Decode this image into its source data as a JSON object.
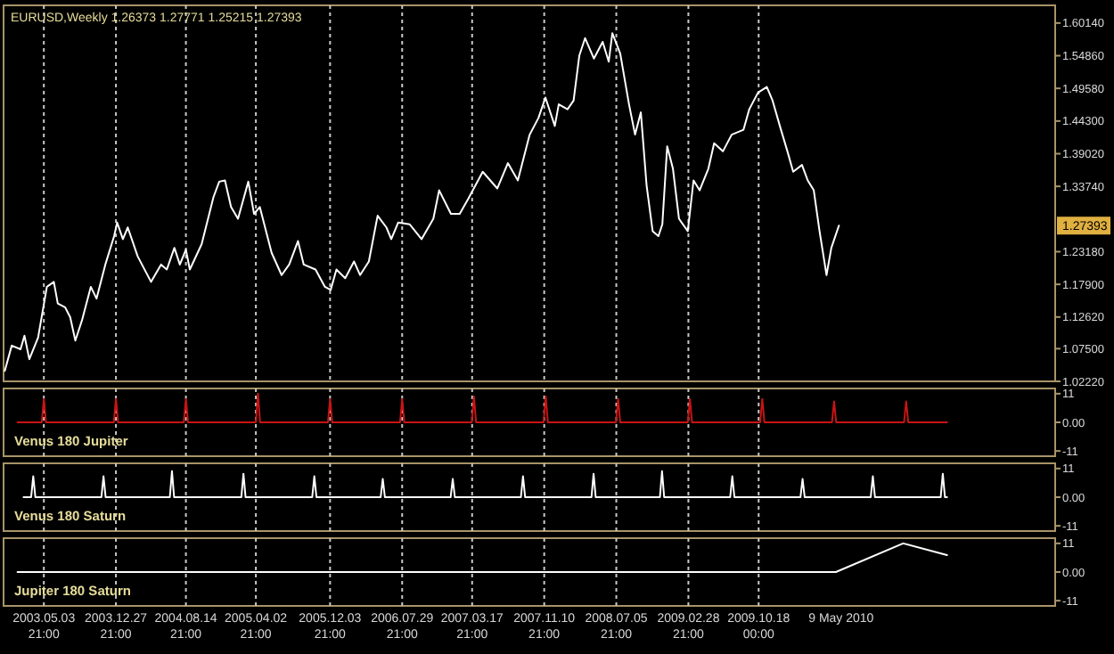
{
  "chart_data": [
    {
      "type": "line",
      "title": "EURUSD,Weekly  1.26373 1.27771 1.25215 1.27393",
      "grid": "x",
      "tick_labels": "y",
      "xlim": [
        "2002-12-21",
        "2012-06-23"
      ],
      "xticks": [
        {
          "value": "2003-05-03",
          "label": null
        },
        {
          "value": "2003-12-27",
          "label": null
        },
        {
          "value": "2004-08-14",
          "label": null
        },
        {
          "value": "2005-04-02",
          "label": null
        },
        {
          "value": "2005-12-03",
          "label": null
        },
        {
          "value": "2006-07-29",
          "label": null
        },
        {
          "value": "2007-03-17",
          "label": null
        },
        {
          "value": "2007-11-10",
          "label": null
        },
        {
          "value": "2008-07-05",
          "label": null
        },
        {
          "value": "2009-02-28",
          "label": null
        },
        {
          "value": "2009-10-18",
          "label": null
        }
      ],
      "ylim": [
        1.0222,
        1.63
      ],
      "yticks": [
        {
          "value": 1.0222,
          "label": "1.02220"
        },
        {
          "value": 1.075,
          "label": "1.07500"
        },
        {
          "value": 1.1262,
          "label": "1.12620"
        },
        {
          "value": 1.179,
          "label": "1.17900"
        },
        {
          "value": 1.2318,
          "label": "1.23180"
        },
        {
          "value": 1.3374,
          "label": "1.33740"
        },
        {
          "value": 1.3902,
          "label": "1.39020"
        },
        {
          "value": 1.443,
          "label": "1.44300"
        },
        {
          "value": 1.4958,
          "label": "1.49580"
        },
        {
          "value": 1.5486,
          "label": "1.54860"
        },
        {
          "value": 1.6014,
          "label": "1.60140"
        }
      ],
      "annotations": [
        {
          "text": "1.27393",
          "y": 1.27393
        }
      ],
      "x": [
        "2002-12-25",
        "2003-01-17",
        "2003-02-15",
        "2003-02-28",
        "2003-03-16",
        "2003-04-14",
        "2003-05-13",
        "2003-06-05",
        "2003-06-18",
        "2003-07-12",
        "2003-07-29",
        "2003-08-15",
        "2003-09-06",
        "2003-10-05",
        "2003-10-24",
        "2003-11-22",
        "2003-12-21",
        "2003-12-31",
        "2004-01-19",
        "2004-02-04",
        "2004-03-08",
        "2004-04-21",
        "2004-05-24",
        "2004-06-12",
        "2004-07-07",
        "2004-07-25",
        "2004-08-14",
        "2004-08-27",
        "2004-10-05",
        "2004-11-13",
        "2004-12-02",
        "2004-12-21",
        "2005-01-10",
        "2005-02-02",
        "2005-03-08",
        "2005-03-27",
        "2005-04-15",
        "2005-05-24",
        "2005-06-26",
        "2005-07-21",
        "2005-08-19",
        "2005-09-07",
        "2005-10-16",
        "2005-11-16",
        "2005-12-05",
        "2005-12-24",
        "2006-01-22",
        "2006-02-20",
        "2006-03-12",
        "2006-04-10",
        "2006-05-09",
        "2006-06-07",
        "2006-06-23",
        "2006-07-16",
        "2006-08-23",
        "2006-10-01",
        "2006-11-09",
        "2006-11-28",
        "2007-01-06",
        "2007-02-04",
        "2007-03-04",
        "2007-04-21",
        "2007-06-08",
        "2007-07-13",
        "2007-08-15",
        "2007-09-23",
        "2007-10-22",
        "2007-11-14",
        "2007-12-15",
        "2007-12-28",
        "2008-01-26",
        "2008-02-15",
        "2008-03-05",
        "2008-03-24",
        "2008-04-22",
        "2008-05-21",
        "2008-06-10",
        "2008-06-22",
        "2008-07-18",
        "2008-08-16",
        "2008-09-05",
        "2008-09-24",
        "2008-10-13",
        "2008-11-02",
        "2008-11-21",
        "2008-12-04",
        "2008-12-20",
        "2009-01-08",
        "2009-01-28",
        "2009-02-26",
        "2009-03-17",
        "2009-04-06",
        "2009-05-05",
        "2009-05-24",
        "2009-06-22",
        "2009-07-21",
        "2009-08-29",
        "2009-09-17",
        "2009-10-16",
        "2009-11-14",
        "2009-12-03",
        "2009-12-27",
        "2010-01-21",
        "2010-02-09",
        "2010-03-10",
        "2010-03-29",
        "2010-04-18",
        "2010-05-07",
        "2010-05-30",
        "2010-06-15",
        "2010-07-10"
      ],
      "series": [
        {
          "color": "#ffffff",
          "values": [
            1.039,
            1.08,
            1.074,
            1.096,
            1.058,
            1.093,
            1.175,
            1.183,
            1.148,
            1.142,
            1.126,
            1.088,
            1.121,
            1.175,
            1.156,
            1.211,
            1.257,
            1.279,
            1.252,
            1.271,
            1.224,
            1.183,
            1.211,
            1.203,
            1.238,
            1.211,
            1.235,
            1.203,
            1.244,
            1.32,
            1.345,
            1.347,
            1.304,
            1.285,
            1.345,
            1.293,
            1.304,
            1.23,
            1.194,
            1.211,
            1.249,
            1.211,
            1.203,
            1.175,
            1.17,
            1.203,
            1.189,
            1.216,
            1.194,
            1.216,
            1.29,
            1.271,
            1.252,
            1.279,
            1.276,
            1.252,
            1.285,
            1.331,
            1.293,
            1.293,
            1.317,
            1.361,
            1.334,
            1.375,
            1.347,
            1.421,
            1.448,
            1.481,
            1.435,
            1.47,
            1.462,
            1.476,
            1.549,
            1.577,
            1.544,
            1.571,
            1.539,
            1.585,
            1.552,
            1.47,
            1.421,
            1.457,
            1.339,
            1.265,
            1.257,
            1.276,
            1.402,
            1.366,
            1.285,
            1.265,
            1.347,
            1.331,
            1.366,
            1.407,
            1.394,
            1.421,
            1.429,
            1.462,
            1.489,
            1.498,
            1.476,
            1.435,
            1.394,
            1.361,
            1.372,
            1.347,
            1.331,
            1.265,
            1.194,
            1.238,
            1.274
          ]
        }
      ]
    },
    {
      "type": "line",
      "grid": "x",
      "tick_labels": "y",
      "annotations": [
        "Venus 180 Jupiter"
      ],
      "xlim": [
        "2002-12-21",
        "2012-06-23"
      ],
      "xticks": [
        {
          "value": "2003-05-03",
          "label": null
        },
        {
          "value": "2003-12-27",
          "label": null
        },
        {
          "value": "2004-08-14",
          "label": null
        },
        {
          "value": "2005-04-02",
          "label": null
        },
        {
          "value": "2005-12-03",
          "label": null
        },
        {
          "value": "2006-07-29",
          "label": null
        },
        {
          "value": "2007-03-17",
          "label": null
        },
        {
          "value": "2007-11-10",
          "label": null
        },
        {
          "value": "2008-07-05",
          "label": null
        },
        {
          "value": "2009-02-28",
          "label": null
        },
        {
          "value": "2009-10-18",
          "label": null
        }
      ],
      "ylim": [
        -13,
        13
      ],
      "yticks": [
        {
          "value": 11,
          "label": "11"
        },
        {
          "value": 0,
          "label": "0.00"
        },
        {
          "value": -11,
          "label": "-11"
        }
      ],
      "x": [
        "2003-02-05",
        "2003-04-26",
        "2003-05-03",
        "2003-05-10",
        "2003-12-20",
        "2003-12-27",
        "2004-01-03",
        "2004-08-07",
        "2004-08-14",
        "2004-08-21",
        "2005-04-02",
        "2005-04-09",
        "2005-04-16",
        "2005-11-26",
        "2005-12-03",
        "2005-12-10",
        "2006-07-22",
        "2006-07-29",
        "2006-08-05",
        "2007-03-16",
        "2007-03-23",
        "2007-03-30",
        "2007-11-08",
        "2007-11-15",
        "2007-11-22",
        "2008-07-04",
        "2008-07-11",
        "2008-07-18",
        "2009-02-26",
        "2009-03-05",
        "2009-03-12",
        "2009-10-23",
        "2009-10-30",
        "2009-11-06",
        "2010-06-17",
        "2010-06-24",
        "2010-07-01",
        "2011-02-10",
        "2011-02-17",
        "2011-02-24",
        "2011-07-02"
      ],
      "series": [
        {
          "color": "#c81414",
          "values": [
            0,
            0,
            9,
            0,
            0,
            9,
            0,
            0,
            9,
            0,
            0,
            11,
            0,
            0,
            9,
            0,
            0,
            9,
            0,
            0,
            10,
            0,
            0,
            10,
            0,
            0,
            9,
            0,
            0,
            9,
            0,
            0,
            9,
            0,
            0,
            8,
            0,
            0,
            8,
            0,
            0
          ]
        }
      ]
    },
    {
      "type": "line",
      "grid": "x",
      "tick_labels": "y",
      "annotations": [
        "Venus 180 Saturn"
      ],
      "xlim": [
        "2002-12-21",
        "2012-06-23"
      ],
      "xticks": [
        {
          "value": "2003-05-03",
          "label": null
        },
        {
          "value": "2003-12-27",
          "label": null
        },
        {
          "value": "2004-08-14",
          "label": null
        },
        {
          "value": "2005-04-02",
          "label": null
        },
        {
          "value": "2005-12-03",
          "label": null
        },
        {
          "value": "2006-07-29",
          "label": null
        },
        {
          "value": "2007-03-17",
          "label": null
        },
        {
          "value": "2007-11-10",
          "label": null
        },
        {
          "value": "2008-07-05",
          "label": null
        },
        {
          "value": "2009-02-28",
          "label": null
        },
        {
          "value": "2009-10-18",
          "label": null
        }
      ],
      "ylim": [
        -13,
        13
      ],
      "yticks": [
        {
          "value": 11,
          "label": "11"
        },
        {
          "value": 0,
          "label": "0.00"
        },
        {
          "value": -11,
          "label": "-11"
        }
      ],
      "x": [
        "2003-02-25",
        "2003-03-22",
        "2003-03-29",
        "2003-04-05",
        "2003-11-09",
        "2003-11-16",
        "2003-11-23",
        "2004-06-22",
        "2004-06-29",
        "2004-07-06",
        "2005-02-13",
        "2005-02-20",
        "2005-02-27",
        "2005-10-05",
        "2005-10-12",
        "2005-10-19",
        "2006-05-19",
        "2006-05-26",
        "2006-06-02",
        "2007-01-05",
        "2007-01-12",
        "2007-01-19",
        "2007-08-25",
        "2007-09-01",
        "2007-09-08",
        "2008-04-14",
        "2008-04-21",
        "2008-04-28",
        "2008-11-26",
        "2008-12-03",
        "2008-12-10",
        "2009-07-16",
        "2009-07-23",
        "2009-07-30",
        "2010-03-05",
        "2010-03-12",
        "2010-03-19",
        "2010-10-23",
        "2010-10-30",
        "2010-11-06",
        "2011-06-11",
        "2011-06-18",
        "2011-06-25",
        "2011-07-02"
      ],
      "series": [
        {
          "color": "#ffffff",
          "values": [
            0,
            0,
            8,
            0,
            0,
            8,
            0,
            0,
            10,
            0,
            0,
            9,
            0,
            0,
            8,
            0,
            0,
            7,
            0,
            0,
            7,
            0,
            0,
            8,
            0,
            0,
            9,
            0,
            0,
            10,
            0,
            0,
            8,
            0,
            0,
            7,
            0,
            0,
            8,
            0,
            0,
            9,
            0,
            0
          ]
        }
      ]
    },
    {
      "type": "line",
      "grid": "x",
      "annotations": [
        "Jupiter 180 Saturn",
        "9 May 2010"
      ],
      "xlim": [
        "2002-12-21",
        "2012-06-23"
      ],
      "xticks": [
        {
          "value": "2003-05-03",
          "label": "2003.05.03 21:00"
        },
        {
          "value": "2003-12-27",
          "label": "2003.12.27 21:00"
        },
        {
          "value": "2004-08-14",
          "label": "2004.08.14 21:00"
        },
        {
          "value": "2005-04-02",
          "label": "2005.04.02 21:00"
        },
        {
          "value": "2005-12-03",
          "label": "2005.12.03 21:00"
        },
        {
          "value": "2006-07-29",
          "label": "2006.07.29 21:00"
        },
        {
          "value": "2007-03-17",
          "label": "2007.03.17 21:00"
        },
        {
          "value": "2007-11-10",
          "label": "2007.11.10 21:00"
        },
        {
          "value": "2008-07-05",
          "label": "2008.07.05 21:00"
        },
        {
          "value": "2009-02-28",
          "label": "2009.02.28 21:00"
        },
        {
          "value": "2009-10-18",
          "label": "2009.10.18 00:00"
        }
      ],
      "ylim": [
        -13,
        13
      ],
      "yticks": [
        {
          "value": 11,
          "label": "11"
        },
        {
          "value": 0,
          "label": "0.00"
        },
        {
          "value": -11,
          "label": "-11"
        }
      ],
      "x": [
        "2003-02-05",
        "2010-06-30",
        "2011-02-07",
        "2011-07-02"
      ],
      "series": [
        {
          "color": "#ffffff",
          "values": [
            0,
            0,
            11,
            6.5
          ]
        }
      ]
    }
  ]
}
